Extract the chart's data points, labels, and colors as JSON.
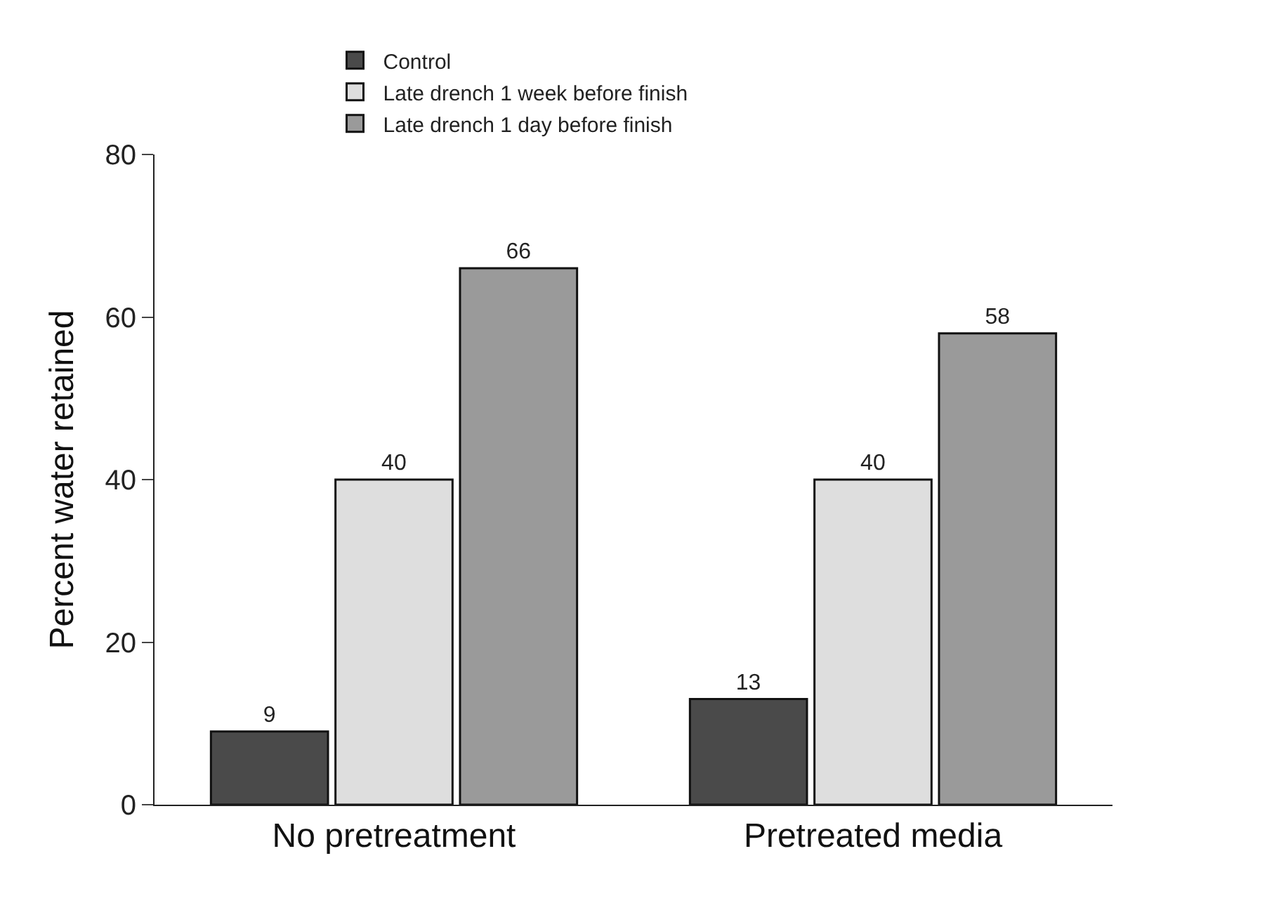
{
  "chart_data": {
    "type": "bar",
    "ylabel": "Percent water retained",
    "categories": [
      "No pretreatment",
      "Pretreated media"
    ],
    "series": [
      {
        "name": "Control",
        "color": "#4a4a4a",
        "values": [
          9,
          13
        ]
      },
      {
        "name": "Late drench 1 week before finish",
        "color": "#dedede",
        "values": [
          40,
          40
        ]
      },
      {
        "name": "Late drench 1 day before finish",
        "color": "#9a9a9a",
        "values": [
          66,
          58
        ]
      }
    ],
    "ylim": [
      0,
      80
    ],
    "yticks": [
      0,
      20,
      40,
      60,
      80
    ],
    "data_labels": true,
    "grid": false,
    "legend": "top"
  }
}
